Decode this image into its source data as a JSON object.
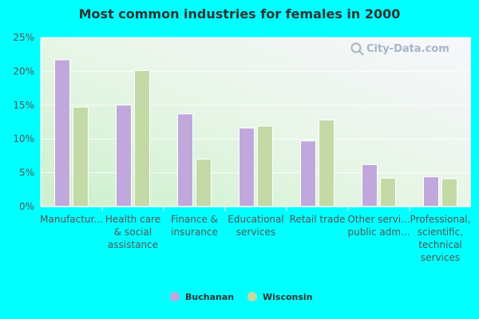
{
  "chart_data": {
    "type": "bar",
    "title": "Most common industries for females in 2000",
    "categories": [
      [
        "Manufactur..."
      ],
      [
        "Health care",
        "& social",
        "assistance"
      ],
      [
        "Finance &",
        "insurance"
      ],
      [
        "Educational",
        "services"
      ],
      [
        "Retail trade"
      ],
      [
        "Other servi...",
        "public adm..."
      ],
      [
        "Professional,",
        "scientific,",
        "technical",
        "services"
      ]
    ],
    "series": [
      {
        "name": "Buchanan",
        "color": "#c0a8dc",
        "values": [
          21.7,
          15.0,
          13.7,
          11.6,
          9.7,
          6.2,
          4.4
        ]
      },
      {
        "name": "Wisconsin",
        "color": "#c3d9a6",
        "values": [
          14.7,
          20.1,
          7.0,
          11.9,
          12.8,
          4.2,
          4.1
        ]
      }
    ],
    "ylim": [
      0,
      25
    ],
    "yticks": [
      0,
      5,
      10,
      15,
      20,
      25
    ],
    "ytick_labels": [
      "0%",
      "5%",
      "10%",
      "15%",
      "20%",
      "25%"
    ],
    "grid": true,
    "legend_position": "bottom-center"
  },
  "watermark": {
    "text": "City-Data.com",
    "icon": "search-icon"
  }
}
